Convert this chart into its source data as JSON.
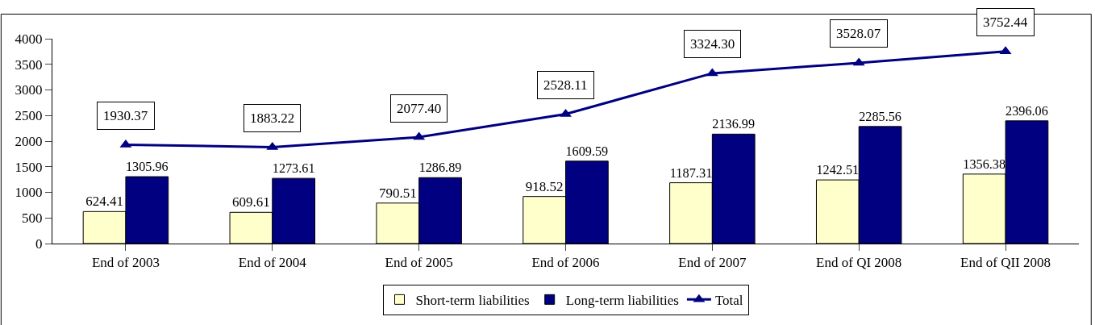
{
  "chart_data": {
    "type": "bar",
    "categories": [
      "End of 2003",
      "End of 2004",
      "End of 2005",
      "End of 2006",
      "End of 2007",
      "End of QI 2008",
      "End of QII 2008"
    ],
    "series": [
      {
        "name": "Short-term liabilities",
        "color": "#ffffcc",
        "values": [
          624.41,
          609.61,
          790.51,
          918.52,
          1187.31,
          1242.51,
          1356.38
        ],
        "value_labels": [
          "624.41",
          "609.61",
          "790.51",
          "918.52",
          "1187.31",
          "1242.51",
          "1356.38"
        ]
      },
      {
        "name": "Long-term liabilities",
        "color": "#000080",
        "values": [
          1305.96,
          1273.61,
          1286.89,
          1609.59,
          2136.99,
          2285.56,
          2396.06
        ],
        "value_labels": [
          "1305.96",
          "1273.61",
          "1286.89",
          "1609.59",
          "2136.99",
          "2285.56",
          "2396.06"
        ]
      },
      {
        "name": "Total",
        "type": "line",
        "color": "#000080",
        "marker": "triangle",
        "values": [
          1930.37,
          1883.22,
          2077.4,
          2528.11,
          3324.3,
          3528.07,
          3752.44
        ],
        "value_labels": [
          "1930.37",
          "1883.22",
          "2077.40",
          "2528.11",
          "3324.30",
          "3528.07",
          "3752.44"
        ]
      }
    ],
    "ylim": [
      0,
      4000
    ],
    "yticks": [
      0,
      500,
      1000,
      1500,
      2000,
      2500,
      3000,
      3500,
      4000
    ],
    "grid": false,
    "legend": "bottom"
  }
}
